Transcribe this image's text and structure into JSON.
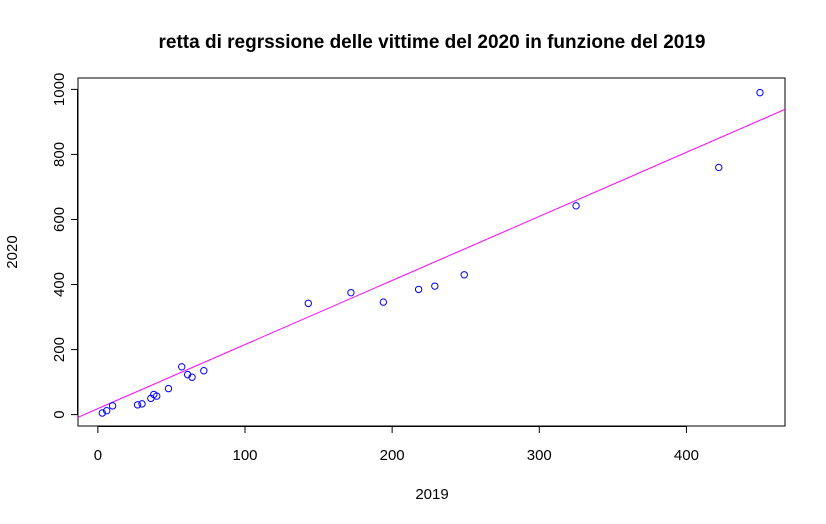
{
  "chart_data": {
    "type": "scatter",
    "title": "retta di regrssione delle vittime del 2020 in funzione del 2019",
    "xlabel": "2019",
    "ylabel": "2020",
    "xlim": [
      -13.5,
      467
    ],
    "ylim": [
      -35,
      1035
    ],
    "x_ticks": [
      0,
      100,
      200,
      300,
      400
    ],
    "y_ticks": [
      0,
      200,
      400,
      600,
      800,
      1000
    ],
    "x_tick_labels": [
      "0",
      "100",
      "200",
      "300",
      "400"
    ],
    "y_tick_labels": [
      "0",
      "200",
      "400",
      "600",
      "800",
      "1000"
    ],
    "grid": false,
    "legend": "none",
    "point_color": "#0000ff",
    "line_color": "#ff00ff",
    "points": [
      {
        "x": 3,
        "y": 5
      },
      {
        "x": 6,
        "y": 12
      },
      {
        "x": 10,
        "y": 27
      },
      {
        "x": 27,
        "y": 30
      },
      {
        "x": 30,
        "y": 33
      },
      {
        "x": 36,
        "y": 50
      },
      {
        "x": 38,
        "y": 62
      },
      {
        "x": 40,
        "y": 57
      },
      {
        "x": 48,
        "y": 80
      },
      {
        "x": 57,
        "y": 147
      },
      {
        "x": 61,
        "y": 123
      },
      {
        "x": 64,
        "y": 115
      },
      {
        "x": 72,
        "y": 135
      },
      {
        "x": 143,
        "y": 342
      },
      {
        "x": 172,
        "y": 375
      },
      {
        "x": 194,
        "y": 346
      },
      {
        "x": 218,
        "y": 385
      },
      {
        "x": 229,
        "y": 395
      },
      {
        "x": 249,
        "y": 430
      },
      {
        "x": 325,
        "y": 642
      },
      {
        "x": 422,
        "y": 760
      },
      {
        "x": 450,
        "y": 990
      }
    ],
    "regression_line": {
      "intercept": 18.5,
      "slope": 1.97
    }
  }
}
